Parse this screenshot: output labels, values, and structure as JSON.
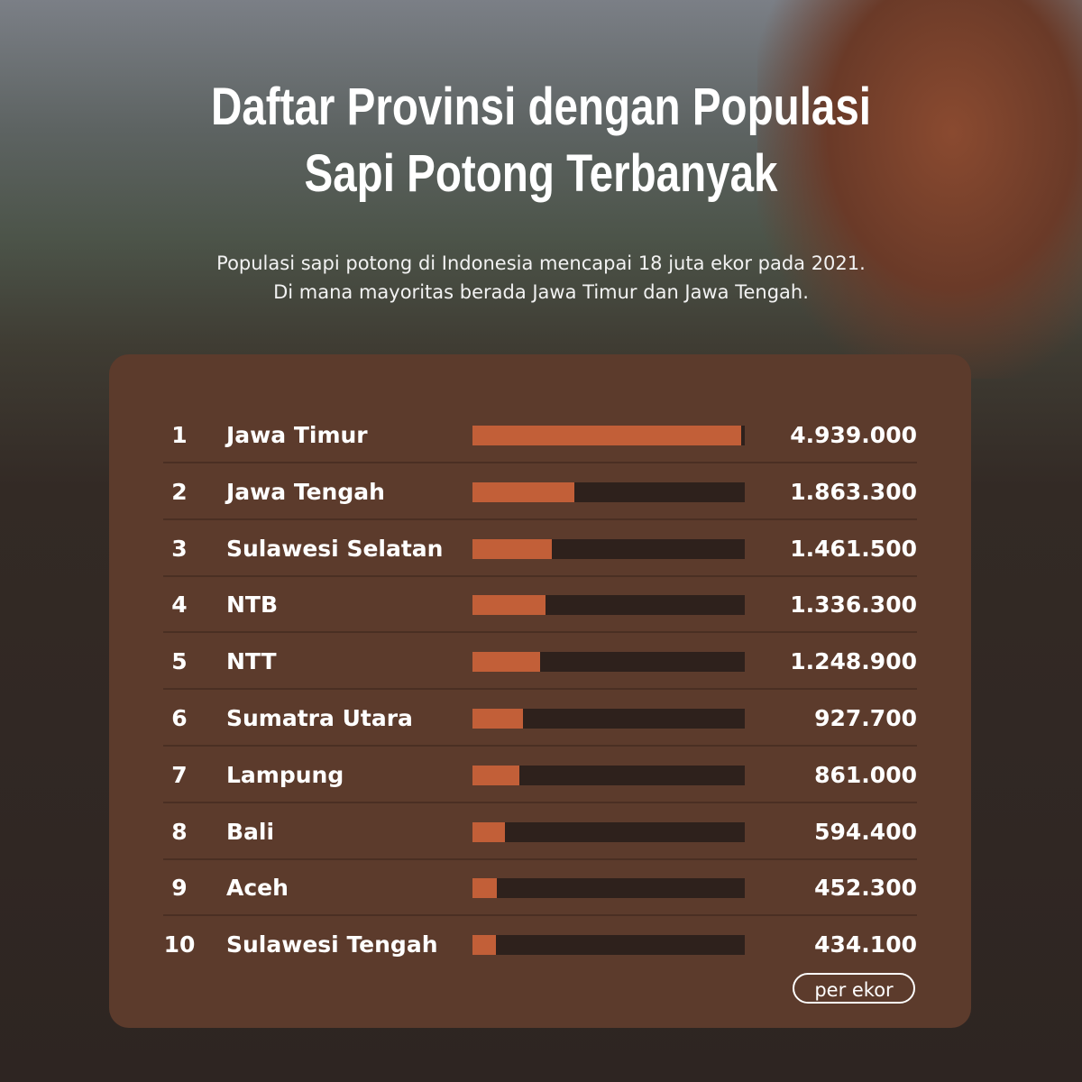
{
  "title_line1": "Daftar Provinsi dengan Populasi",
  "title_line2": "Sapi Potong Terbanyak",
  "subtitle_line1": "Populasi sapi potong di Indonesia mencapai 18 juta ekor pada 2021.",
  "subtitle_line2": "Di mana mayoritas berada Jawa Timur dan Jawa Tengah.",
  "colors": {
    "bar": "#c25f38",
    "track": "#2e211c",
    "card": "#5c3b2c"
  },
  "chart_data": {
    "type": "bar",
    "orientation": "horizontal",
    "xlim": [
      0,
      5000000
    ],
    "unit_label": "per ekor",
    "rows": [
      {
        "rank": "1",
        "name": "Jawa Timur",
        "value": 4939000,
        "label": "4.939.000"
      },
      {
        "rank": "2",
        "name": "Jawa Tengah",
        "value": 1863300,
        "label": "1.863.300"
      },
      {
        "rank": "3",
        "name": "Sulawesi Selatan",
        "value": 1461500,
        "label": "1.461.500"
      },
      {
        "rank": "4",
        "name": "NTB",
        "value": 1336300,
        "label": "1.336.300"
      },
      {
        "rank": "5",
        "name": "NTT",
        "value": 1248900,
        "label": "1.248.900"
      },
      {
        "rank": "6",
        "name": "Sumatra Utara",
        "value": 927700,
        "label": "927.700"
      },
      {
        "rank": "7",
        "name": "Lampung",
        "value": 861000,
        "label": "861.000"
      },
      {
        "rank": "8",
        "name": "Bali",
        "value": 594400,
        "label": "594.400"
      },
      {
        "rank": "9",
        "name": "Aceh",
        "value": 452300,
        "label": "452.300"
      },
      {
        "rank": "10",
        "name": "Sulawesi Tengah",
        "value": 434100,
        "label": "434.100"
      }
    ]
  }
}
